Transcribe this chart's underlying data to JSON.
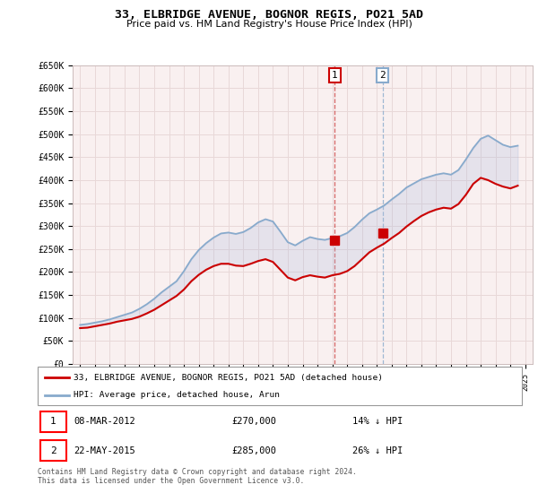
{
  "title": "33, ELBRIDGE AVENUE, BOGNOR REGIS, PO21 5AD",
  "subtitle": "Price paid vs. HM Land Registry's House Price Index (HPI)",
  "ylabel_ticks": [
    "£0",
    "£50K",
    "£100K",
    "£150K",
    "£200K",
    "£250K",
    "£300K",
    "£350K",
    "£400K",
    "£450K",
    "£500K",
    "£550K",
    "£600K",
    "£650K"
  ],
  "ylim": [
    0,
    650000
  ],
  "xlim_start": 1994.5,
  "xlim_end": 2025.5,
  "legend_line1": "33, ELBRIDGE AVENUE, BOGNOR REGIS, PO21 5AD (detached house)",
  "legend_line2": "HPI: Average price, detached house, Arun",
  "red_color": "#cc0000",
  "blue_color": "#88aacc",
  "fill_color": "#aabbdd",
  "background_color": "#f9f0f0",
  "grid_color": "#e8d8d8",
  "annotation1_label": "1",
  "annotation1_date": "08-MAR-2012",
  "annotation1_price": "£270,000",
  "annotation1_hpi": "14% ↓ HPI",
  "annotation1_year": 2012.17,
  "annotation1_value": 270000,
  "annotation2_label": "2",
  "annotation2_date": "22-MAY-2015",
  "annotation2_price": "£285,000",
  "annotation2_hpi": "26% ↓ HPI",
  "annotation2_year": 2015.38,
  "annotation2_value": 285000,
  "footnote": "Contains HM Land Registry data © Crown copyright and database right 2024.\nThis data is licensed under the Open Government Licence v3.0.",
  "hpi_x": [
    1995.0,
    1995.5,
    1996.0,
    1996.5,
    1997.0,
    1997.5,
    1998.0,
    1998.5,
    1999.0,
    1999.5,
    2000.0,
    2000.5,
    2001.0,
    2001.5,
    2002.0,
    2002.5,
    2003.0,
    2003.5,
    2004.0,
    2004.5,
    2005.0,
    2005.5,
    2006.0,
    2006.5,
    2007.0,
    2007.5,
    2008.0,
    2008.5,
    2009.0,
    2009.5,
    2010.0,
    2010.5,
    2011.0,
    2011.5,
    2012.0,
    2012.5,
    2013.0,
    2013.5,
    2014.0,
    2014.5,
    2015.0,
    2015.5,
    2016.0,
    2016.5,
    2017.0,
    2017.5,
    2018.0,
    2018.5,
    2019.0,
    2019.5,
    2020.0,
    2020.5,
    2021.0,
    2021.5,
    2022.0,
    2022.5,
    2023.0,
    2023.5,
    2024.0,
    2024.5
  ],
  "hpi_y": [
    85000,
    87000,
    90000,
    93000,
    97000,
    102000,
    107000,
    112000,
    120000,
    130000,
    142000,
    156000,
    168000,
    180000,
    202000,
    228000,
    248000,
    263000,
    275000,
    284000,
    286000,
    283000,
    287000,
    296000,
    308000,
    315000,
    310000,
    288000,
    265000,
    258000,
    268000,
    276000,
    272000,
    270000,
    274000,
    278000,
    285000,
    298000,
    314000,
    328000,
    336000,
    345000,
    358000,
    370000,
    384000,
    393000,
    402000,
    407000,
    412000,
    415000,
    412000,
    422000,
    445000,
    470000,
    490000,
    497000,
    487000,
    477000,
    472000,
    475000
  ],
  "red_x": [
    1995.0,
    1995.5,
    1996.0,
    1996.5,
    1997.0,
    1997.5,
    1998.0,
    1998.5,
    1999.0,
    1999.5,
    2000.0,
    2000.5,
    2001.0,
    2001.5,
    2002.0,
    2002.5,
    2003.0,
    2003.5,
    2004.0,
    2004.5,
    2005.0,
    2005.5,
    2006.0,
    2006.5,
    2007.0,
    2007.5,
    2008.0,
    2008.5,
    2009.0,
    2009.5,
    2010.0,
    2010.5,
    2011.0,
    2011.5,
    2012.0,
    2012.5,
    2013.0,
    2013.5,
    2014.0,
    2014.5,
    2015.0,
    2015.5,
    2016.0,
    2016.5,
    2017.0,
    2017.5,
    2018.0,
    2018.5,
    2019.0,
    2019.5,
    2020.0,
    2020.5,
    2021.0,
    2021.5,
    2022.0,
    2022.5,
    2023.0,
    2023.5,
    2024.0,
    2024.5
  ],
  "red_y": [
    78000,
    79000,
    82000,
    85000,
    88000,
    92000,
    95000,
    98000,
    103000,
    110000,
    118000,
    128000,
    138000,
    148000,
    162000,
    180000,
    194000,
    205000,
    213000,
    218000,
    218000,
    214000,
    213000,
    218000,
    224000,
    228000,
    222000,
    205000,
    188000,
    182000,
    189000,
    193000,
    190000,
    188000,
    193000,
    196000,
    202000,
    213000,
    228000,
    243000,
    253000,
    262000,
    274000,
    285000,
    299000,
    311000,
    322000,
    330000,
    336000,
    340000,
    338000,
    348000,
    368000,
    392000,
    405000,
    400000,
    392000,
    386000,
    382000,
    388000
  ]
}
